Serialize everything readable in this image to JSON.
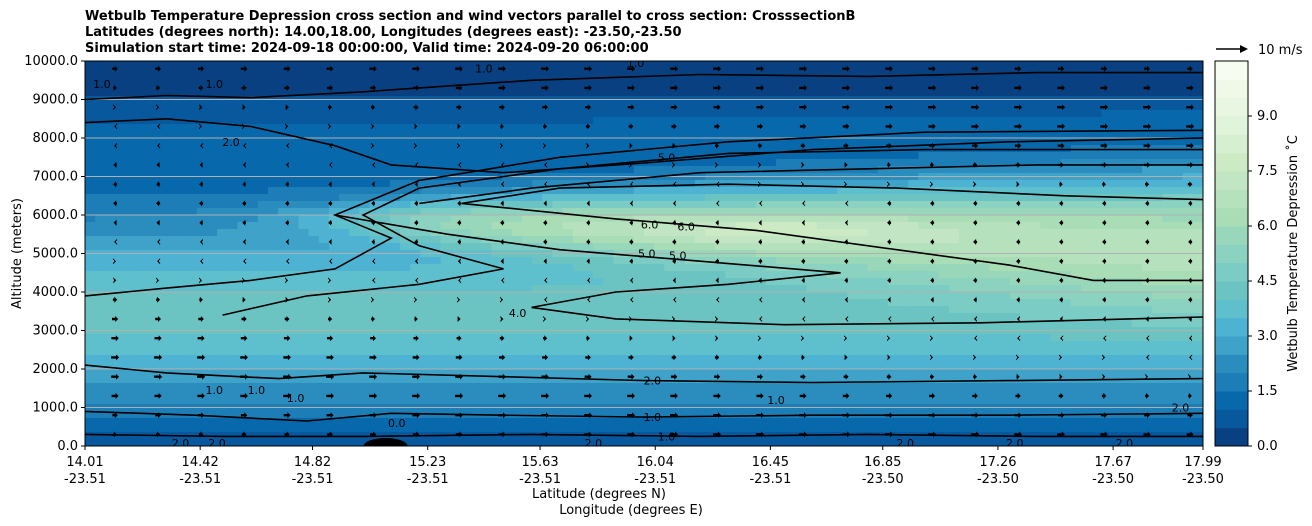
{
  "chart_data": {
    "type": "filled-contour cross section with wind vectors",
    "title_lines": [
      "Wetbulb Temperature Depression cross section and wind vectors parallel to cross section: CrosssectionB",
      "Latitudes (degrees north): 14.00,18.00, Longitudes (degrees east): -23.50,-23.50",
      "Simulation start time: 2024-09-18 00:00:00, Valid time: 2024-09-20 06:00:00"
    ],
    "xlabel_lat": "Latitude (degrees N)",
    "xlabel_lon": "Longitude (degrees E)",
    "ylabel": "Altitude (meters)",
    "xlim": [
      14.01,
      17.99
    ],
    "ylim": [
      0,
      10000
    ],
    "x_ticks": [
      {
        "lat": "14.01",
        "lon": "-23.51",
        "value": 14.01
      },
      {
        "lat": "14.42",
        "lon": "-23.51",
        "value": 14.42
      },
      {
        "lat": "14.82",
        "lon": "-23.51",
        "value": 14.82
      },
      {
        "lat": "15.23",
        "lon": "-23.51",
        "value": 15.23
      },
      {
        "lat": "15.63",
        "lon": "-23.51",
        "value": 15.63
      },
      {
        "lat": "16.04",
        "lon": "-23.51",
        "value": 16.04
      },
      {
        "lat": "16.45",
        "lon": "-23.51",
        "value": 16.45
      },
      {
        "lat": "16.85",
        "lon": "-23.50",
        "value": 16.85
      },
      {
        "lat": "17.26",
        "lon": "-23.50",
        "value": 17.26
      },
      {
        "lat": "17.67",
        "lon": "-23.50",
        "value": 17.67
      },
      {
        "lat": "17.99",
        "lon": "-23.50",
        "value": 17.99
      }
    ],
    "y_ticks": [
      {
        "label": "0.0",
        "value": 0
      },
      {
        "label": "1000.0",
        "value": 1000
      },
      {
        "label": "2000.0",
        "value": 2000
      },
      {
        "label": "3000.0",
        "value": 3000
      },
      {
        "label": "4000.0",
        "value": 4000
      },
      {
        "label": "5000.0",
        "value": 5000
      },
      {
        "label": "6000.0",
        "value": 6000
      },
      {
        "label": "7000.0",
        "value": 7000
      },
      {
        "label": "8000.0",
        "value": 8000
      },
      {
        "label": "9000.0",
        "value": 9000
      },
      {
        "label": "10000.0",
        "value": 10000
      }
    ],
    "colorbar": {
      "label": "Wetbulb Temperature Depression $^\\circ$C",
      "label_display": "Wetbulb Temperature Depression ˚C",
      "range": [
        0,
        10.5
      ],
      "levels": 21,
      "ticks": [
        "0.0",
        "1.5",
        "3.0",
        "4.5",
        "6.0",
        "7.5",
        "9.0"
      ],
      "colors": [
        "#084081",
        "#08589e",
        "#0868ac",
        "#1d7eb7",
        "#2b8cbe",
        "#3ea2c9",
        "#4eb3d3",
        "#5fc0cd",
        "#6cc4c2",
        "#7bccc4",
        "#8bd3c0",
        "#99d7ba",
        "#a8ddb5",
        "#b5e2bc",
        "#c2e6c4",
        "#ccebc5",
        "#d6efd0",
        "#e0f3db",
        "#e8f6e2",
        "#f0f9e8",
        "#f7fcf0"
      ]
    },
    "quiver_key": {
      "label": "10 m/s",
      "speed_ms": 10
    },
    "contour_labels": [
      {
        "text": "1.0",
        "lat": 14.07,
        "alt": 9400
      },
      {
        "text": "1.0",
        "lat": 14.47,
        "alt": 9400
      },
      {
        "text": "2.0",
        "lat": 14.53,
        "alt": 7900
      },
      {
        "text": "5.0",
        "lat": 16.08,
        "alt": 7500
      },
      {
        "text": "6.0",
        "lat": 16.02,
        "alt": 5750
      },
      {
        "text": "6.0",
        "lat": 16.15,
        "alt": 5700
      },
      {
        "text": "5.0",
        "lat": 16.01,
        "alt": 5000
      },
      {
        "text": "5.0",
        "lat": 16.12,
        "alt": 4950
      },
      {
        "text": "4.0",
        "lat": 15.55,
        "alt": 3450
      },
      {
        "text": "2.0",
        "lat": 16.03,
        "alt": 1700
      },
      {
        "text": "1.0",
        "lat": 16.47,
        "alt": 1200
      },
      {
        "text": "1.0",
        "lat": 16.03,
        "alt": 750
      },
      {
        "text": "1.0",
        "lat": 16.08,
        "alt": 250
      },
      {
        "text": "1.0",
        "lat": 14.47,
        "alt": 1450
      },
      {
        "text": "1.0",
        "lat": 14.62,
        "alt": 1450
      },
      {
        "text": "1.0",
        "lat": 14.76,
        "alt": 1250
      },
      {
        "text": "0.0",
        "lat": 15.12,
        "alt": 600
      },
      {
        "text": "2.0",
        "lat": 14.35,
        "alt": 80
      },
      {
        "text": "2.0",
        "lat": 14.48,
        "alt": 80
      },
      {
        "text": "2.0",
        "lat": 15.09,
        "alt": 80
      },
      {
        "text": "2.0",
        "lat": 15.82,
        "alt": 80
      },
      {
        "text": "2.0",
        "lat": 16.93,
        "alt": 80
      },
      {
        "text": "2.0",
        "lat": 17.32,
        "alt": 80
      },
      {
        "text": "2.0",
        "lat": 17.71,
        "alt": 80
      },
      {
        "text": "2.0",
        "lat": 17.91,
        "alt": 1000
      },
      {
        "text": "1.0",
        "lat": 15.43,
        "alt": 9800
      },
      {
        "text": "1.0",
        "lat": 15.97,
        "alt": 9950
      }
    ],
    "isolines": [
      {
        "level": 1.0,
        "points": [
          [
            14.01,
            9000
          ],
          [
            14.3,
            9100
          ],
          [
            14.6,
            9050
          ],
          [
            15.0,
            9200
          ],
          [
            15.6,
            9500
          ],
          [
            16.2,
            9650
          ],
          [
            16.8,
            9600
          ],
          [
            17.4,
            9700
          ],
          [
            17.99,
            9700
          ]
        ]
      },
      {
        "level": 2.0,
        "points": [
          [
            14.01,
            8400
          ],
          [
            14.3,
            8500
          ],
          [
            14.6,
            8300
          ],
          [
            14.9,
            7800
          ],
          [
            15.1,
            7300
          ],
          [
            15.5,
            7100
          ],
          [
            16.0,
            7350
          ],
          [
            16.6,
            7700
          ],
          [
            17.3,
            7900
          ],
          [
            17.99,
            8000
          ]
        ]
      },
      {
        "level": 2.0,
        "points": [
          [
            14.01,
            3900
          ],
          [
            14.3,
            4100
          ],
          [
            14.6,
            4300
          ],
          [
            14.9,
            4600
          ],
          [
            15.1,
            5400
          ],
          [
            14.9,
            6000
          ],
          [
            15.2,
            6900
          ],
          [
            15.7,
            7500
          ],
          [
            16.3,
            7900
          ],
          [
            17.0,
            8150
          ],
          [
            17.99,
            8200
          ]
        ]
      },
      {
        "level": 4.0,
        "points": [
          [
            14.5,
            3400
          ],
          [
            14.8,
            3900
          ],
          [
            15.2,
            4200
          ],
          [
            15.5,
            4600
          ],
          [
            15.2,
            5200
          ],
          [
            15.0,
            6000
          ],
          [
            15.2,
            6700
          ],
          [
            15.7,
            7200
          ],
          [
            16.3,
            7600
          ],
          [
            17.0,
            7700
          ],
          [
            17.99,
            7700
          ]
        ]
      },
      {
        "level": 5.0,
        "points": [
          [
            14.9,
            6000
          ],
          [
            15.3,
            5500
          ],
          [
            15.7,
            5100
          ],
          [
            16.2,
            4800
          ],
          [
            16.7,
            4500
          ],
          [
            16.3,
            4200
          ],
          [
            15.9,
            4000
          ],
          [
            15.6,
            3600
          ],
          [
            15.9,
            3300
          ],
          [
            16.5,
            3150
          ],
          [
            17.2,
            3200
          ],
          [
            17.99,
            3350
          ]
        ]
      },
      {
        "level": 5.0,
        "points": [
          [
            15.2,
            6300
          ],
          [
            15.6,
            6700
          ],
          [
            16.2,
            7100
          ],
          [
            16.8,
            7200
          ],
          [
            17.4,
            7300
          ],
          [
            17.99,
            7300
          ]
        ]
      },
      {
        "level": 6.0,
        "points": [
          [
            15.35,
            6300
          ],
          [
            15.9,
            5900
          ],
          [
            16.4,
            5600
          ],
          [
            16.9,
            5100
          ],
          [
            17.3,
            4700
          ],
          [
            17.6,
            4300
          ],
          [
            17.99,
            4300
          ]
        ]
      },
      {
        "level": 6.0,
        "points": [
          [
            15.35,
            6300
          ],
          [
            15.7,
            6700
          ],
          [
            16.3,
            6800
          ],
          [
            16.9,
            6700
          ],
          [
            17.5,
            6500
          ],
          [
            17.99,
            6400
          ]
        ]
      },
      {
        "level": 2.0,
        "points": [
          [
            14.01,
            2100
          ],
          [
            14.3,
            1900
          ],
          [
            14.7,
            1750
          ],
          [
            15.0,
            1900
          ],
          [
            15.5,
            1800
          ],
          [
            16.0,
            1700
          ],
          [
            16.6,
            1650
          ],
          [
            17.3,
            1700
          ],
          [
            17.99,
            1750
          ]
        ]
      },
      {
        "level": 1.0,
        "points": [
          [
            14.01,
            900
          ],
          [
            14.4,
            800
          ],
          [
            14.8,
            650
          ],
          [
            15.1,
            850
          ],
          [
            15.5,
            800
          ],
          [
            16.0,
            750
          ],
          [
            16.6,
            800
          ],
          [
            17.3,
            800
          ],
          [
            17.99,
            850
          ]
        ]
      },
      {
        "level": 1.0,
        "points": [
          [
            14.01,
            300
          ],
          [
            14.5,
            250
          ],
          [
            15.0,
            250
          ],
          [
            15.6,
            300
          ],
          [
            16.2,
            250
          ],
          [
            16.8,
            300
          ],
          [
            17.4,
            250
          ],
          [
            17.99,
            250
          ]
        ]
      }
    ]
  }
}
